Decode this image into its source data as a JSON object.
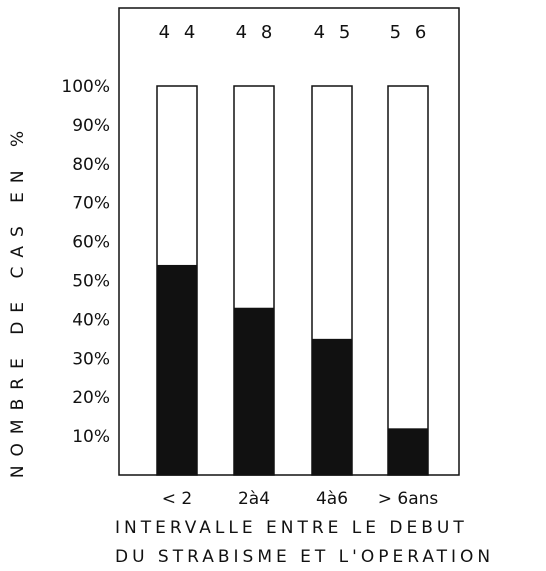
{
  "chart_data": {
    "type": "bar",
    "stacked_percent": true,
    "categories": [
      "< 2",
      "2à4",
      "4à6",
      "> 6ans"
    ],
    "counts": [
      "4 4",
      "4 8",
      "4 5",
      "5 6"
    ],
    "values": [
      54,
      43,
      35,
      12
    ],
    "ylim": [
      0,
      100
    ],
    "yticks": [
      "10%",
      "20%",
      "30%",
      "40%",
      "50%",
      "60%",
      "70%",
      "80%",
      "90%",
      "100%"
    ],
    "ylabel": "NOMBRE DE CAS EN %",
    "xlabel_line1": "INTERVALLE ENTRE LE DEBUT",
    "xlabel_line2": "DU STRABISME ET L'OPERATION",
    "colors": {
      "fill": "#111111",
      "empty": "#ffffff",
      "frame": "#111111"
    }
  }
}
